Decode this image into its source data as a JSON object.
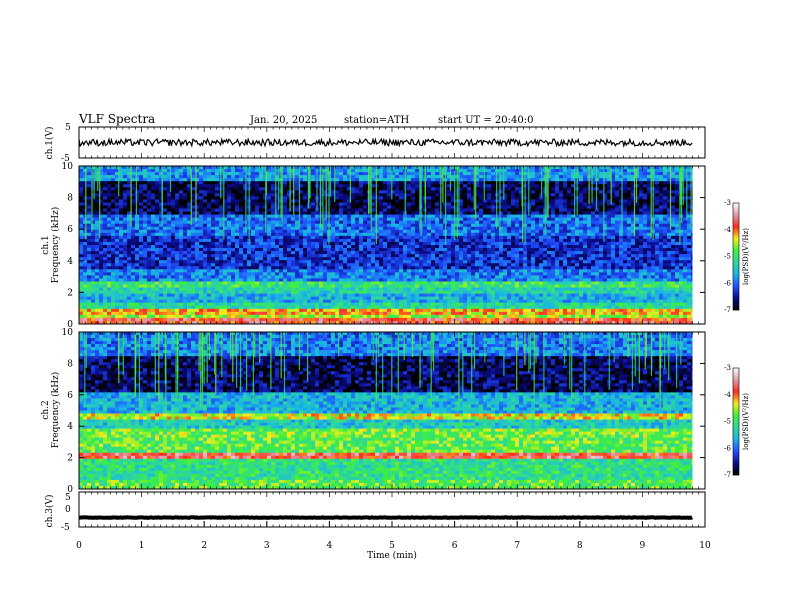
{
  "header": {
    "title": "VLF  Spectra",
    "date": "Jan. 20, 2025",
    "station": "station=ATH",
    "start": "start  UT  =   20:40:0"
  },
  "chart_data": [
    {
      "type": "line",
      "panel": "ch1-waveform",
      "ylabel": "ch.1(V)",
      "ylim": [
        -5,
        5
      ],
      "yticks": [
        "5",
        "-5"
      ],
      "x_range_min": [
        0,
        9.8
      ],
      "level_v": 0,
      "color": "#000000"
    },
    {
      "type": "heatmap",
      "panel": "ch1-spectrogram",
      "ylabel": "ch.1\nFrequency (kHz)",
      "ylabel_lines": [
        "ch.1",
        "Frequency (kHz)"
      ],
      "xlim": [
        0,
        10
      ],
      "ylim": [
        0,
        10
      ],
      "yticks": [
        "0",
        "2",
        "4",
        "6",
        "8",
        "10"
      ],
      "colorbar": {
        "label": "log(PSD)(V²/Hz)",
        "range": [
          -7,
          -3
        ],
        "ticks": [
          "-3",
          "-4",
          "-5",
          "-6",
          "-7"
        ]
      },
      "bands": [
        {
          "f0": 0,
          "f1": 0.3,
          "level": -3.8
        },
        {
          "f0": 0.3,
          "f1": 0.6,
          "level": -4.6
        },
        {
          "f0": 0.6,
          "f1": 0.9,
          "level": -4.2
        },
        {
          "f0": 0.9,
          "f1": 1.3,
          "level": -5.2
        },
        {
          "f0": 1.3,
          "f1": 1.9,
          "level": -5.6
        },
        {
          "f0": 1.9,
          "f1": 2.3,
          "level": -5.3
        },
        {
          "f0": 2.3,
          "f1": 2.7,
          "level": -5.0
        },
        {
          "f0": 2.7,
          "f1": 3.4,
          "level": -5.9
        },
        {
          "f0": 3.4,
          "f1": 5.5,
          "level": -6.3
        },
        {
          "f0": 5.5,
          "f1": 7.0,
          "level": -6.0
        },
        {
          "f0": 7.0,
          "f1": 9.0,
          "level": -6.7
        },
        {
          "f0": 9.0,
          "f1": 10,
          "level": -5.8
        }
      ]
    },
    {
      "type": "heatmap",
      "panel": "ch2-spectrogram",
      "ylabel": "ch.2\nFrequency (kHz)",
      "ylabel_lines": [
        "ch.2",
        "Frequency (kHz)"
      ],
      "xlim": [
        0,
        10
      ],
      "ylim": [
        0,
        10
      ],
      "yticks": [
        "0",
        "2",
        "4",
        "6",
        "8",
        "10"
      ],
      "colorbar": {
        "label": "log(PSD)(V²/Hz)",
        "range": [
          -7,
          -3
        ],
        "ticks": [
          "-3",
          "-4",
          "-5",
          "-6",
          "-7"
        ]
      },
      "bands": [
        {
          "f0": 0,
          "f1": 0.6,
          "level": -4.8
        },
        {
          "f0": 0.6,
          "f1": 1.9,
          "level": -5.1
        },
        {
          "f0": 1.9,
          "f1": 2.3,
          "level": -3.7
        },
        {
          "f0": 2.3,
          "f1": 3.3,
          "level": -4.8
        },
        {
          "f0": 3.3,
          "f1": 3.8,
          "level": -4.7
        },
        {
          "f0": 3.8,
          "f1": 4.4,
          "level": -5.4
        },
        {
          "f0": 4.4,
          "f1": 4.8,
          "level": -4.4
        },
        {
          "f0": 4.8,
          "f1": 6.2,
          "level": -5.6
        },
        {
          "f0": 6.2,
          "f1": 8.5,
          "level": -6.7
        },
        {
          "f0": 8.5,
          "f1": 10,
          "level": -5.9
        }
      ]
    },
    {
      "type": "line",
      "panel": "ch3-waveform",
      "ylabel": "ch.3(V)",
      "ylim": [
        -5,
        5
      ],
      "yticks": [
        "5",
        "0",
        "-5"
      ],
      "xlim": [
        0,
        10
      ],
      "xticks": [
        "0",
        "1",
        "2",
        "3",
        "4",
        "5",
        "6",
        "7",
        "8",
        "9",
        "10"
      ],
      "xlabel": "Time  (min)",
      "x_range_min": [
        0,
        9.8
      ],
      "level_v": -2.3,
      "color": "#000000"
    }
  ],
  "colors": {
    "background": "#ffffff",
    "axes": "#000000",
    "colormap": [
      "#000000",
      "#0b0b8a",
      "#1f4fff",
      "#18b4e8",
      "#2cd6a0",
      "#3ef03a",
      "#f4ee1c",
      "#ff2a1a",
      "#e09aa6",
      "#ffffff"
    ]
  }
}
